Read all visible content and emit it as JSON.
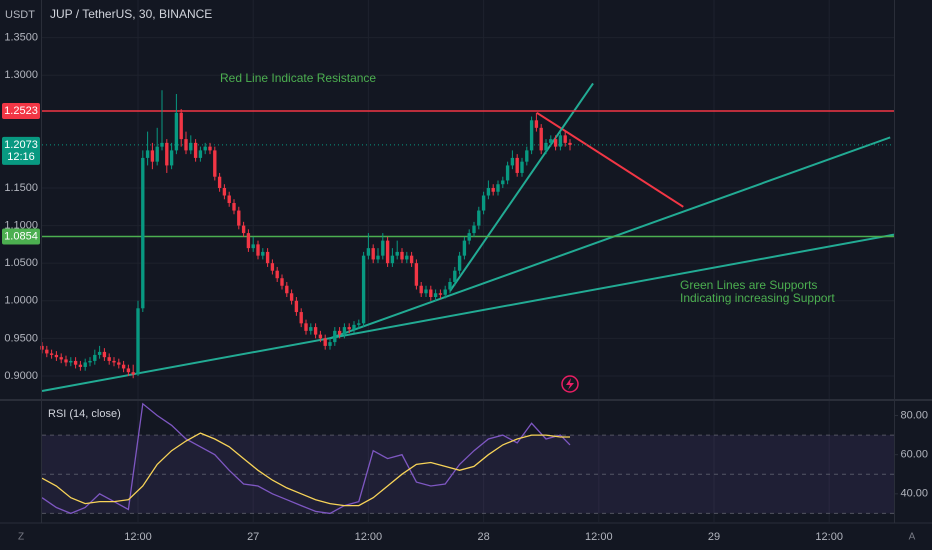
{
  "chart_data": {
    "type": "candlestick",
    "currency": "USDT",
    "title": "JUP / TetherUS, 30, BINANCE",
    "up_color": "#089981",
    "down_color": "#f23645",
    "candles": [
      [
        0.94,
        0.945,
        0.93,
        0.935
      ],
      [
        0.935,
        0.94,
        0.925,
        0.93
      ],
      [
        0.93,
        0.935,
        0.923,
        0.928
      ],
      [
        0.928,
        0.933,
        0.92,
        0.925
      ],
      [
        0.925,
        0.93,
        0.917,
        0.922
      ],
      [
        0.922,
        0.927,
        0.913,
        0.918
      ],
      [
        0.918,
        0.925,
        0.913,
        0.92
      ],
      [
        0.92,
        0.925,
        0.91,
        0.915
      ],
      [
        0.915,
        0.92,
        0.907,
        0.912
      ],
      [
        0.912,
        0.923,
        0.907,
        0.918
      ],
      [
        0.918,
        0.925,
        0.913,
        0.92
      ],
      [
        0.92,
        0.935,
        0.915,
        0.928
      ],
      [
        0.928,
        0.94,
        0.923,
        0.932
      ],
      [
        0.932,
        0.937,
        0.92,
        0.925
      ],
      [
        0.925,
        0.93,
        0.915,
        0.92
      ],
      [
        0.92,
        0.925,
        0.913,
        0.918
      ],
      [
        0.918,
        0.923,
        0.91,
        0.915
      ],
      [
        0.915,
        0.92,
        0.905,
        0.91
      ],
      [
        0.91,
        0.915,
        0.9,
        0.905
      ],
      [
        0.905,
        0.915,
        0.897,
        0.902
      ],
      [
        0.902,
        1.0,
        0.9,
        0.99
      ],
      [
        0.99,
        1.2,
        0.985,
        1.19
      ],
      [
        1.19,
        1.225,
        1.18,
        1.2
      ],
      [
        1.2,
        1.21,
        1.175,
        1.185
      ],
      [
        1.185,
        1.23,
        1.18,
        1.205
      ],
      [
        1.205,
        1.28,
        1.2,
        1.21
      ],
      [
        1.21,
        1.215,
        1.17,
        1.18
      ],
      [
        1.18,
        1.21,
        1.175,
        1.2
      ],
      [
        1.2,
        1.275,
        1.195,
        1.25
      ],
      [
        1.25,
        1.255,
        1.205,
        1.215
      ],
      [
        1.215,
        1.225,
        1.195,
        1.2
      ],
      [
        1.2,
        1.22,
        1.195,
        1.21
      ],
      [
        1.21,
        1.215,
        1.185,
        1.19
      ],
      [
        1.19,
        1.205,
        1.185,
        1.2
      ],
      [
        1.2,
        1.21,
        1.195,
        1.205
      ],
      [
        1.205,
        1.21,
        1.195,
        1.2
      ],
      [
        1.2,
        1.205,
        1.16,
        1.165
      ],
      [
        1.165,
        1.17,
        1.145,
        1.15
      ],
      [
        1.15,
        1.155,
        1.135,
        1.14
      ],
      [
        1.14,
        1.145,
        1.125,
        1.13
      ],
      [
        1.13,
        1.135,
        1.115,
        1.12
      ],
      [
        1.12,
        1.125,
        1.095,
        1.1
      ],
      [
        1.1,
        1.105,
        1.085,
        1.09
      ],
      [
        1.09,
        1.095,
        1.065,
        1.07
      ],
      [
        1.07,
        1.085,
        1.065,
        1.075
      ],
      [
        1.075,
        1.08,
        1.055,
        1.06
      ],
      [
        1.06,
        1.07,
        1.055,
        1.065
      ],
      [
        1.065,
        1.07,
        1.045,
        1.05
      ],
      [
        1.05,
        1.055,
        1.035,
        1.04
      ],
      [
        1.04,
        1.045,
        1.025,
        1.03
      ],
      [
        1.03,
        1.035,
        1.015,
        1.02
      ],
      [
        1.02,
        1.025,
        1.005,
        1.01
      ],
      [
        1.01,
        1.015,
        0.995,
        1.0
      ],
      [
        1.0,
        1.005,
        0.98,
        0.985
      ],
      [
        0.985,
        0.99,
        0.965,
        0.97
      ],
      [
        0.97,
        0.975,
        0.955,
        0.96
      ],
      [
        0.96,
        0.97,
        0.955,
        0.965
      ],
      [
        0.965,
        0.97,
        0.95,
        0.955
      ],
      [
        0.955,
        0.96,
        0.945,
        0.95
      ],
      [
        0.95,
        0.955,
        0.935,
        0.94
      ],
      [
        0.94,
        0.95,
        0.935,
        0.945
      ],
      [
        0.945,
        0.965,
        0.94,
        0.96
      ],
      [
        0.96,
        0.965,
        0.95,
        0.955
      ],
      [
        0.955,
        0.97,
        0.95,
        0.965
      ],
      [
        0.965,
        0.97,
        0.957,
        0.962
      ],
      [
        0.962,
        0.973,
        0.957,
        0.968
      ],
      [
        0.968,
        0.975,
        0.963,
        0.97
      ],
      [
        0.97,
        1.065,
        0.965,
        1.06
      ],
      [
        1.06,
        1.09,
        1.055,
        1.07
      ],
      [
        1.07,
        1.075,
        1.05,
        1.055
      ],
      [
        1.055,
        1.07,
        1.05,
        1.06
      ],
      [
        1.06,
        1.09,
        1.055,
        1.08
      ],
      [
        1.08,
        1.085,
        1.045,
        1.05
      ],
      [
        1.05,
        1.07,
        1.045,
        1.06
      ],
      [
        1.06,
        1.08,
        1.055,
        1.065
      ],
      [
        1.065,
        1.07,
        1.05,
        1.055
      ],
      [
        1.055,
        1.065,
        1.05,
        1.06
      ],
      [
        1.06,
        1.065,
        1.045,
        1.05
      ],
      [
        1.05,
        1.055,
        1.015,
        1.02
      ],
      [
        1.02,
        1.025,
        1.005,
        1.01
      ],
      [
        1.01,
        1.02,
        1.005,
        1.015
      ],
      [
        1.015,
        1.02,
        1.0,
        1.005
      ],
      [
        1.005,
        1.015,
        1.0,
        1.01
      ],
      [
        1.01,
        1.015,
        1.003,
        1.008
      ],
      [
        1.008,
        1.02,
        1.003,
        1.015
      ],
      [
        1.015,
        1.03,
        1.01,
        1.025
      ],
      [
        1.025,
        1.045,
        1.02,
        1.04
      ],
      [
        1.04,
        1.065,
        1.035,
        1.06
      ],
      [
        1.06,
        1.085,
        1.055,
        1.08
      ],
      [
        1.08,
        1.095,
        1.075,
        1.09
      ],
      [
        1.09,
        1.105,
        1.085,
        1.1
      ],
      [
        1.1,
        1.125,
        1.095,
        1.12
      ],
      [
        1.12,
        1.145,
        1.115,
        1.14
      ],
      [
        1.14,
        1.16,
        1.135,
        1.15
      ],
      [
        1.15,
        1.155,
        1.14,
        1.145
      ],
      [
        1.145,
        1.16,
        1.14,
        1.155
      ],
      [
        1.155,
        1.165,
        1.15,
        1.16
      ],
      [
        1.16,
        1.185,
        1.155,
        1.18
      ],
      [
        1.18,
        1.2,
        1.175,
        1.19
      ],
      [
        1.19,
        1.195,
        1.165,
        1.17
      ],
      [
        1.17,
        1.19,
        1.165,
        1.185
      ],
      [
        1.185,
        1.205,
        1.18,
        1.2
      ],
      [
        1.2,
        1.245,
        1.195,
        1.24
      ],
      [
        1.24,
        1.25,
        1.225,
        1.23
      ],
      [
        1.23,
        1.235,
        1.195,
        1.2
      ],
      [
        1.2,
        1.215,
        1.195,
        1.21
      ],
      [
        1.21,
        1.22,
        1.205,
        1.215
      ],
      [
        1.215,
        1.22,
        1.2,
        1.205
      ],
      [
        1.205,
        1.225,
        1.2,
        1.22
      ],
      [
        1.22,
        1.225,
        1.205,
        1.21
      ],
      [
        1.21,
        1.215,
        1.2,
        1.2073
      ]
    ],
    "xlim": [
      0,
      177.5
    ],
    "xticks": [
      {
        "value": 20,
        "label": "12:00"
      },
      {
        "value": 44,
        "label": "27"
      },
      {
        "value": 68,
        "label": "12:00"
      },
      {
        "value": 92,
        "label": "28"
      },
      {
        "value": 116,
        "label": "12:00"
      },
      {
        "value": 140,
        "label": "29"
      },
      {
        "value": 164,
        "label": "12:00"
      }
    ],
    "ylim": [
      0.8707,
      1.4
    ],
    "yticks": [
      {
        "value": 1.35,
        "label": "1.3500"
      },
      {
        "value": 1.3,
        "label": "1.3000"
      },
      {
        "value": 1.15,
        "label": "1.1500"
      },
      {
        "value": 1.1,
        "label": "1.1000"
      },
      {
        "value": 1.05,
        "label": "1.0500"
      },
      {
        "value": 1.0,
        "label": "1.0000"
      },
      {
        "value": 0.95,
        "label": "0.9500"
      },
      {
        "value": 0.9,
        "label": "0.9000"
      }
    ],
    "grid": true,
    "price_lines": [
      {
        "value": 1.2523,
        "color": "#f23645"
      },
      {
        "value": 1.0854,
        "color": "#4caf50"
      }
    ],
    "last_price": {
      "value": 1.2073,
      "countdown": "12:16",
      "color": "#089981"
    },
    "trend_lines": [
      {
        "color": "#f23645",
        "from": [
          103.1,
          1.25
        ],
        "to": [
          133.6,
          1.125
        ]
      },
      {
        "color": "#22ab94",
        "from": [
          0,
          0.88
        ],
        "to": [
          177.5,
          1.088
        ]
      },
      {
        "color": "#22ab94",
        "from": [
          60,
          0.95
        ],
        "to": [
          176.7,
          1.2173
        ]
      },
      {
        "color": "#22ab94",
        "from": [
          85,
          1.013
        ],
        "to": [
          114.8,
          1.289
        ]
      }
    ],
    "annotations": [
      "Red Line Indicate Resistance",
      "Green Lines are Supports",
      "Indicating increasing Support"
    ],
    "rsi": {
      "title": "RSI (14, close)",
      "color": "#7e57c2",
      "ma_color": "#f7d358",
      "x": [
        0,
        3,
        6,
        9,
        12,
        15,
        18,
        21,
        24,
        27,
        30,
        33,
        36,
        39,
        42,
        45,
        48,
        51,
        54,
        57,
        60,
        63,
        66,
        69,
        72,
        75,
        78,
        81,
        84,
        87,
        90,
        93,
        96,
        99,
        102,
        105,
        108,
        110
      ],
      "values": [
        38,
        33,
        30,
        33,
        40,
        36,
        32,
        86,
        80,
        75,
        68,
        64,
        60,
        52,
        45,
        44,
        40,
        37,
        34,
        31,
        30,
        34,
        36,
        62,
        58,
        60,
        46,
        44,
        45,
        55,
        62,
        68,
        70,
        66,
        76,
        68,
        70,
        65
      ],
      "ma_values": [
        48,
        44,
        38,
        35,
        36,
        36,
        37,
        44,
        55,
        62,
        67,
        71,
        68,
        64,
        58,
        52,
        47,
        43,
        40,
        37,
        35,
        34,
        34,
        38,
        44,
        50,
        55,
        56,
        54,
        52,
        54,
        60,
        65,
        68,
        70,
        70,
        69,
        69
      ],
      "ylim": [
        25.6,
        86.9
      ],
      "yticks": [
        {
          "value": 80,
          "label": "80.00"
        },
        {
          "value": 60,
          "label": "60.00"
        },
        {
          "value": 40,
          "label": "40.00"
        }
      ],
      "bands": [
        70,
        50,
        30
      ]
    }
  }
}
